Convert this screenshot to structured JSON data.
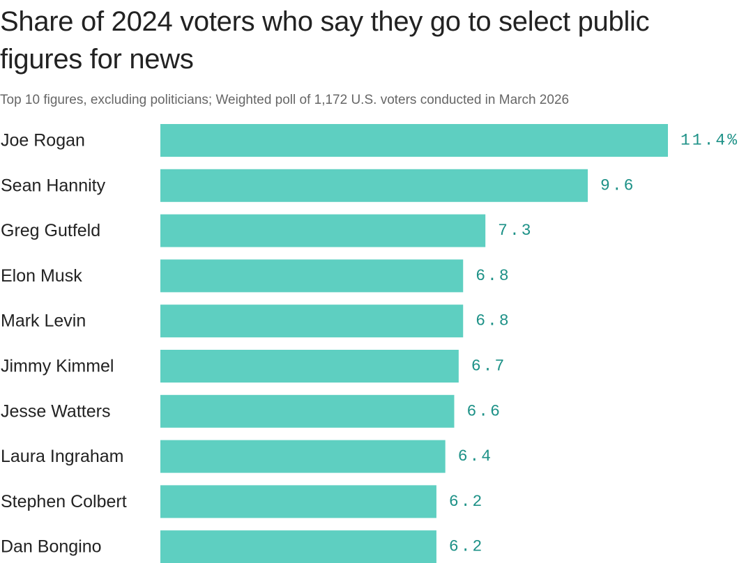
{
  "colors": {
    "bar": "#5ecfc1",
    "value_label": "#1d9187",
    "category_label": "#222222"
  },
  "chart_data": {
    "type": "bar",
    "orientation": "horizontal",
    "title": "Share of 2024 voters who say they go to select public figures for news",
    "subtitle": "Top 10 figures, excluding politicians; Weighted poll of 1,172 U.S. voters conducted in March 2026",
    "categories": [
      "Joe Rogan",
      "Sean Hannity",
      "Greg Gutfeld",
      "Elon Musk",
      "Mark Levin",
      "Jimmy Kimmel",
      "Jesse Watters",
      "Laura Ingraham",
      "Stephen Colbert",
      "Dan Bongino"
    ],
    "values": [
      11.4,
      9.6,
      7.3,
      6.8,
      6.8,
      6.7,
      6.6,
      6.4,
      6.2,
      6.2
    ],
    "value_labels": [
      "11.4%",
      "9.6",
      "7.3",
      "6.8",
      "6.8",
      "6.7",
      "6.6",
      "6.4",
      "6.2",
      "6.2"
    ],
    "unit": "%",
    "xlim": [
      0,
      11.4
    ],
    "xlabel": "",
    "ylabel": "",
    "grid": false,
    "legend": "none"
  }
}
